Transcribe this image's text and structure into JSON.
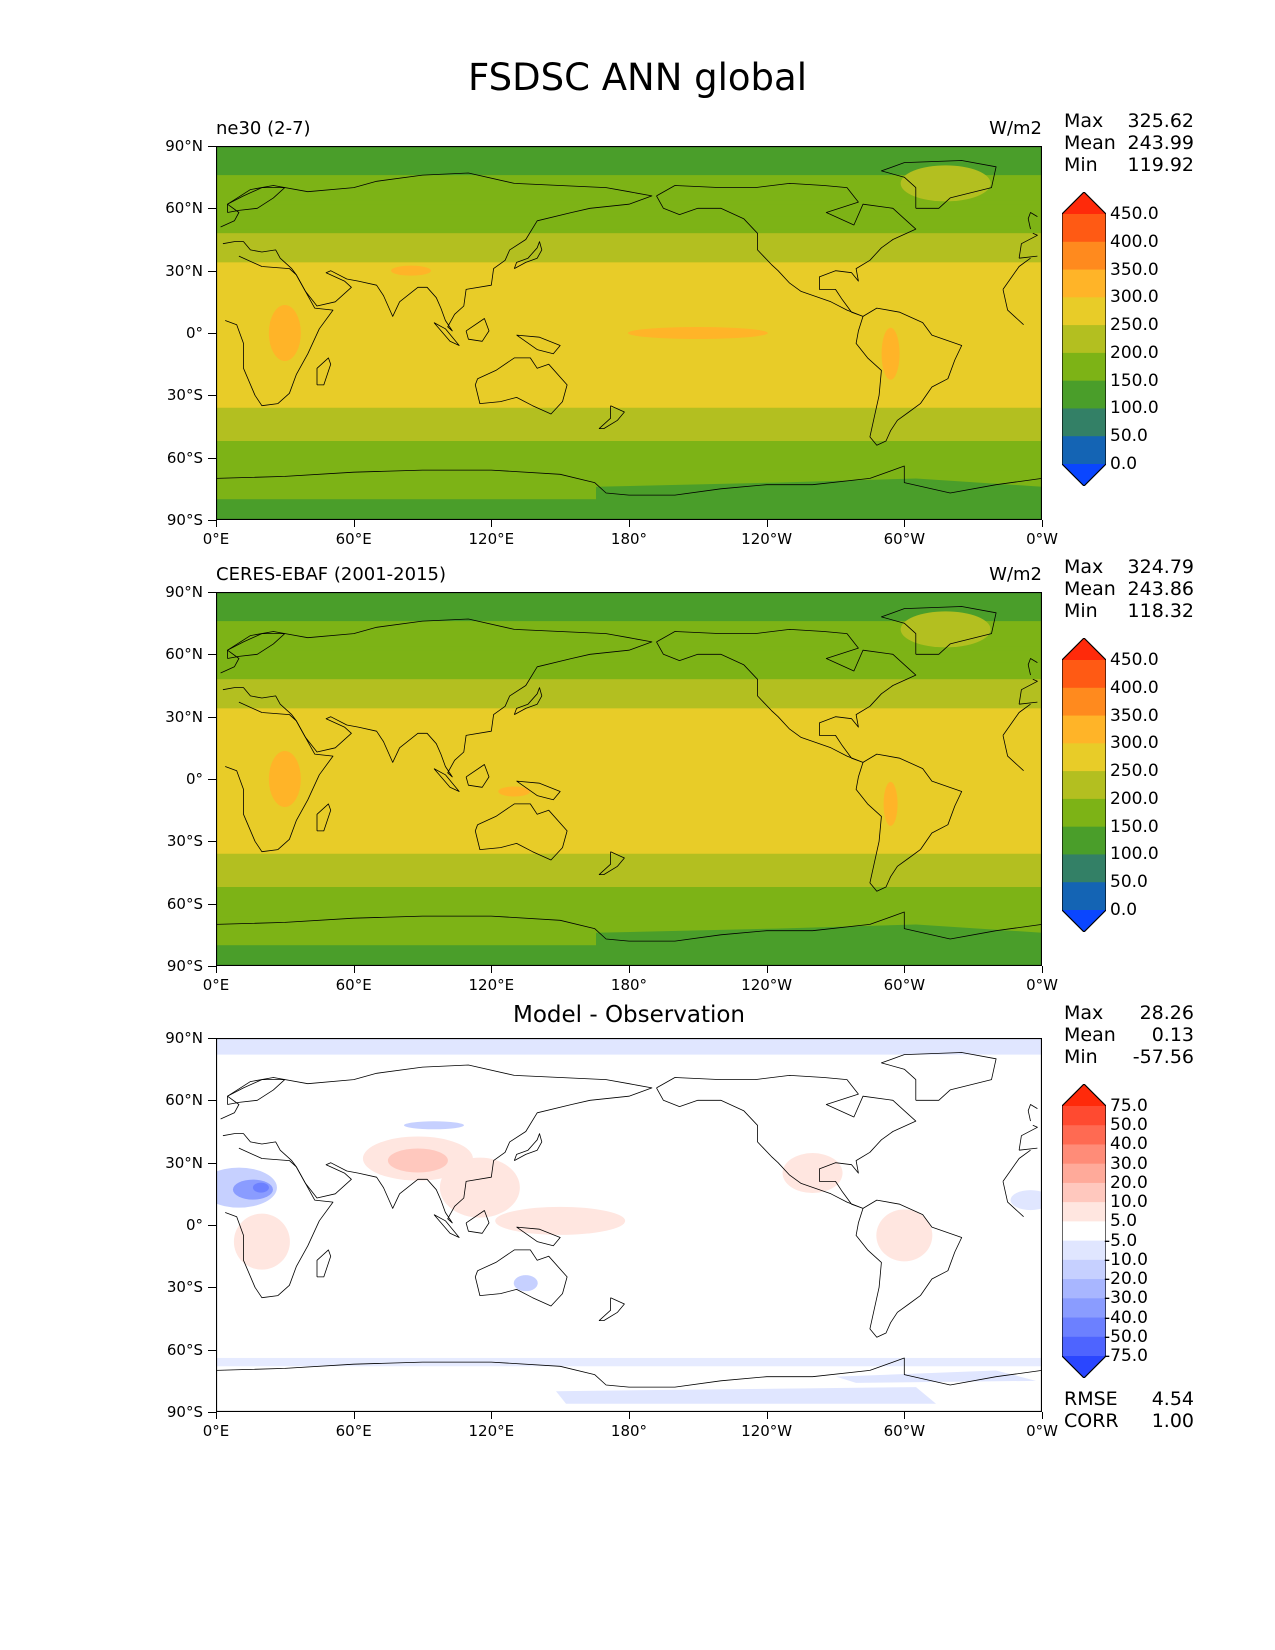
{
  "figure": {
    "title": "FSDSC ANN global",
    "lat_ticks": [
      "90°N",
      "60°N",
      "30°N",
      "0°",
      "30°S",
      "60°S",
      "90°S"
    ],
    "lon_ticks": [
      "0°E",
      "60°E",
      "120°E",
      "180°",
      "120°W",
      "60°W",
      "0°W"
    ]
  },
  "panels": [
    {
      "label": "ne30 (2-7)",
      "units": "W/m2",
      "stats": {
        "max_label": "Max",
        "max": "325.62",
        "mean_label": "Mean",
        "mean": "243.99",
        "min_label": "Min",
        "min": "119.92"
      },
      "colorbar": {
        "ticks": [
          "450.0",
          "400.0",
          "350.0",
          "300.0",
          "250.0",
          "200.0",
          "150.0",
          "100.0",
          "50.0",
          "0.0"
        ],
        "colors": [
          "#ff2a0a",
          "#ff5a14",
          "#ff8a1e",
          "#ffb428",
          "#e8cc28",
          "#b3bf20",
          "#7db316",
          "#4a9e2a",
          "#338066",
          "#1464b4",
          "#0a46ff"
        ]
      }
    },
    {
      "label": "CERES-EBAF (2001-2015)",
      "units": "W/m2",
      "stats": {
        "max_label": "Max",
        "max": "324.79",
        "mean_label": "Mean",
        "mean": "243.86",
        "min_label": "Min",
        "min": "118.32"
      },
      "colorbar": {
        "ticks": [
          "450.0",
          "400.0",
          "350.0",
          "300.0",
          "250.0",
          "200.0",
          "150.0",
          "100.0",
          "50.0",
          "0.0"
        ],
        "colors": [
          "#ff2a0a",
          "#ff5a14",
          "#ff8a1e",
          "#ffb428",
          "#e8cc28",
          "#b3bf20",
          "#7db316",
          "#4a9e2a",
          "#338066",
          "#1464b4",
          "#0a46ff"
        ]
      }
    },
    {
      "label": "Model - Observation",
      "units": "",
      "stats": {
        "max_label": "Max",
        "max": "28.26",
        "mean_label": "Mean",
        "mean": "0.13",
        "min_label": "Min",
        "min": "-57.56"
      },
      "colorbar": {
        "ticks": [
          "75.0",
          "50.0",
          "40.0",
          "30.0",
          "20.0",
          "10.0",
          "5.0",
          "-5.0",
          "-10.0",
          "-20.0",
          "-30.0",
          "-40.0",
          "-50.0",
          "-75.0"
        ],
        "colors": [
          "#ff2a0a",
          "#ff4a30",
          "#ff6a52",
          "#ff8c78",
          "#ffaa9a",
          "#ffc8be",
          "#ffe6e0",
          "#ffffff",
          "#e0e6ff",
          "#c6d0ff",
          "#a8b6ff",
          "#8a9cff",
          "#6c80ff",
          "#4e64ff",
          "#2a46ff"
        ]
      },
      "metrics": {
        "rmse_label": "RMSE",
        "rmse": "4.54",
        "corr_label": "CORR",
        "corr": "1.00"
      }
    }
  ]
}
